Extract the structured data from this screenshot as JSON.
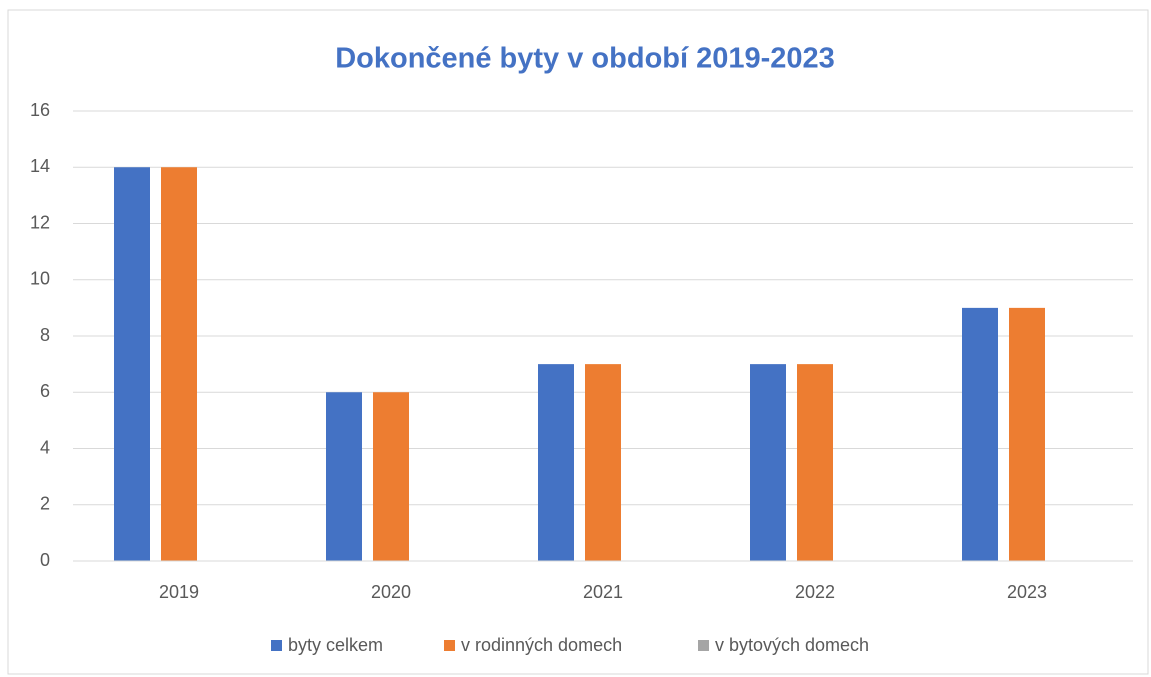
{
  "chart_data": {
    "type": "bar",
    "title": "Dokončené byty v období 2019-2023",
    "categories": [
      "2019",
      "2020",
      "2021",
      "2022",
      "2023"
    ],
    "series": [
      {
        "name": "byty celkem",
        "color": "#4472c4",
        "values": [
          14,
          6,
          7,
          7,
          9
        ]
      },
      {
        "name": "v rodinných domech",
        "color": "#ed7d31",
        "values": [
          14,
          6,
          7,
          7,
          9
        ]
      },
      {
        "name": "v bytových domech",
        "color": "#a5a5a5",
        "values": [
          0,
          0,
          0,
          0,
          0
        ]
      }
    ],
    "ylim": [
      0,
      16
    ],
    "yticks": [
      0,
      2,
      4,
      6,
      8,
      10,
      12,
      14,
      16
    ],
    "grid": true,
    "legend": "bottom"
  }
}
